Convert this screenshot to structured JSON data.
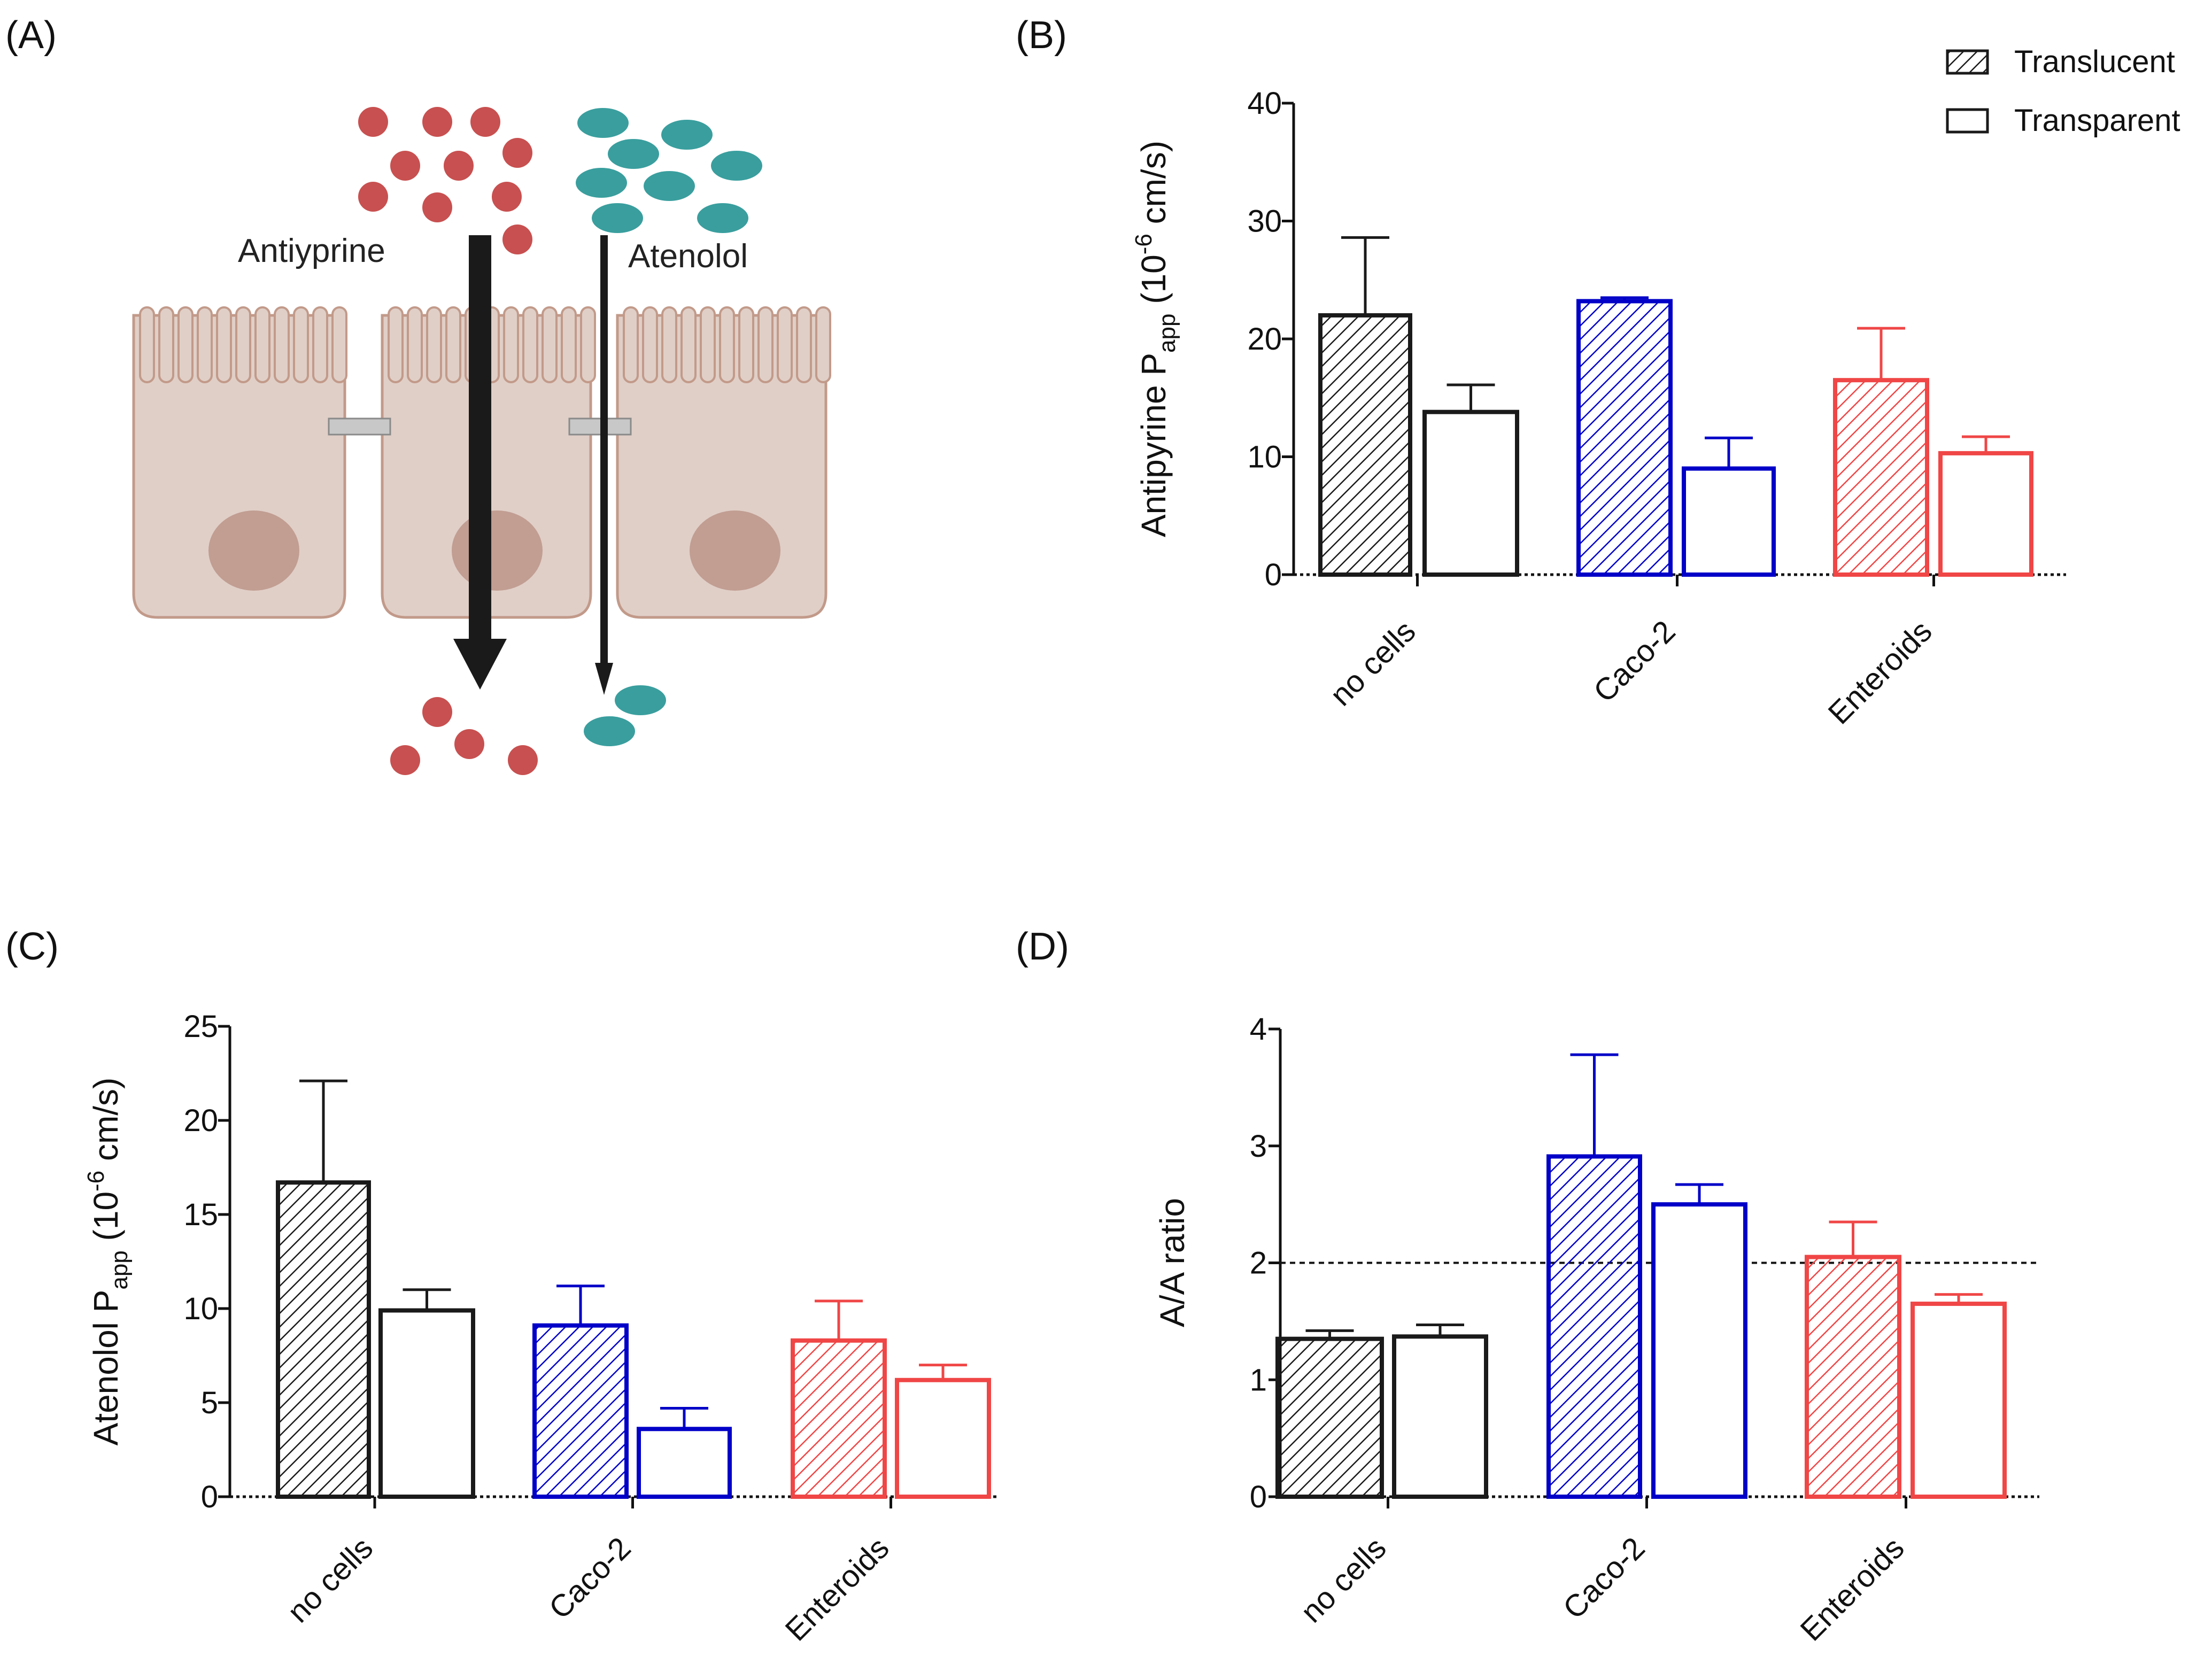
{
  "colors": {
    "no_cells": "#1a1a1a",
    "caco2": "#0000c8",
    "enteroids": "#f04646",
    "cell_body": "#e0cfc7",
    "cell_outline": "#c29a8a",
    "nucleus": "#c19d92",
    "antipyrine": "#c85050",
    "atenolol": "#3a9e9e",
    "junction": "#c8c8c8",
    "arrow": "#1a1a1a"
  },
  "panel_a": {
    "label": "(A)",
    "antipyrine_label": "Antiyprine",
    "atenolol_label": "Atenolol"
  },
  "legend": {
    "entries": [
      "Translucent",
      "Transparent"
    ]
  },
  "chart_data": [
    {
      "panel": "(B)",
      "type": "bar",
      "ylabel_main": "Antipyrine P",
      "ylabel_sub": "app",
      "ylabel_unit_pre": " (10",
      "ylabel_unit_exp": "-6",
      "ylabel_unit_post": " cm/s)",
      "ylim": [
        0,
        40
      ],
      "yticks": [
        "0",
        "10",
        "20",
        "30",
        "40"
      ],
      "ytick_values": [
        0,
        10,
        20,
        30,
        40
      ],
      "categories": [
        "no cells",
        "Caco-2",
        "Enteroids"
      ],
      "series": [
        {
          "name": "Translucent",
          "values": [
            22.0,
            23.2,
            16.5
          ],
          "errors": [
            6.6,
            0.3,
            4.4
          ]
        },
        {
          "name": "Transparent",
          "values": [
            13.8,
            9.0,
            10.3
          ],
          "errors": [
            2.3,
            2.6,
            1.4
          ]
        }
      ],
      "reference_line": null
    },
    {
      "panel": "(C)",
      "type": "bar",
      "ylabel_main": "Atenolol P",
      "ylabel_sub": "app",
      "ylabel_unit_pre": " (10",
      "ylabel_unit_exp": "-6",
      "ylabel_unit_post": " cm/s)",
      "ylim": [
        0,
        25
      ],
      "yticks": [
        "0",
        "5",
        "10",
        "15",
        "20",
        "25"
      ],
      "ytick_values": [
        0,
        5,
        10,
        15,
        20,
        25
      ],
      "categories": [
        "no cells",
        "Caco-2",
        "Enteroids"
      ],
      "series": [
        {
          "name": "Translucent",
          "values": [
            16.7,
            9.1,
            8.3
          ],
          "errors": [
            5.4,
            2.1,
            2.1
          ]
        },
        {
          "name": "Transparent",
          "values": [
            9.9,
            3.6,
            6.2
          ],
          "errors": [
            1.1,
            1.1,
            0.8
          ]
        }
      ],
      "reference_line": null
    },
    {
      "panel": "(D)",
      "type": "bar",
      "ylabel_main": "A/A ratio",
      "ylabel_sub": "",
      "ylabel_unit_pre": "",
      "ylabel_unit_exp": "",
      "ylabel_unit_post": "",
      "ylim": [
        0,
        4
      ],
      "yticks": [
        "0",
        "1",
        "2",
        "3",
        "4"
      ],
      "ytick_values": [
        0,
        1,
        2,
        3,
        4
      ],
      "categories": [
        "no cells",
        "Caco-2",
        "Enteroids"
      ],
      "series": [
        {
          "name": "Translucent",
          "values": [
            1.35,
            2.91,
            2.05
          ],
          "errors": [
            0.07,
            0.87,
            0.3
          ]
        },
        {
          "name": "Transparent",
          "values": [
            1.37,
            2.5,
            1.65
          ],
          "errors": [
            0.1,
            0.17,
            0.08
          ]
        }
      ],
      "reference_line": 2
    }
  ]
}
